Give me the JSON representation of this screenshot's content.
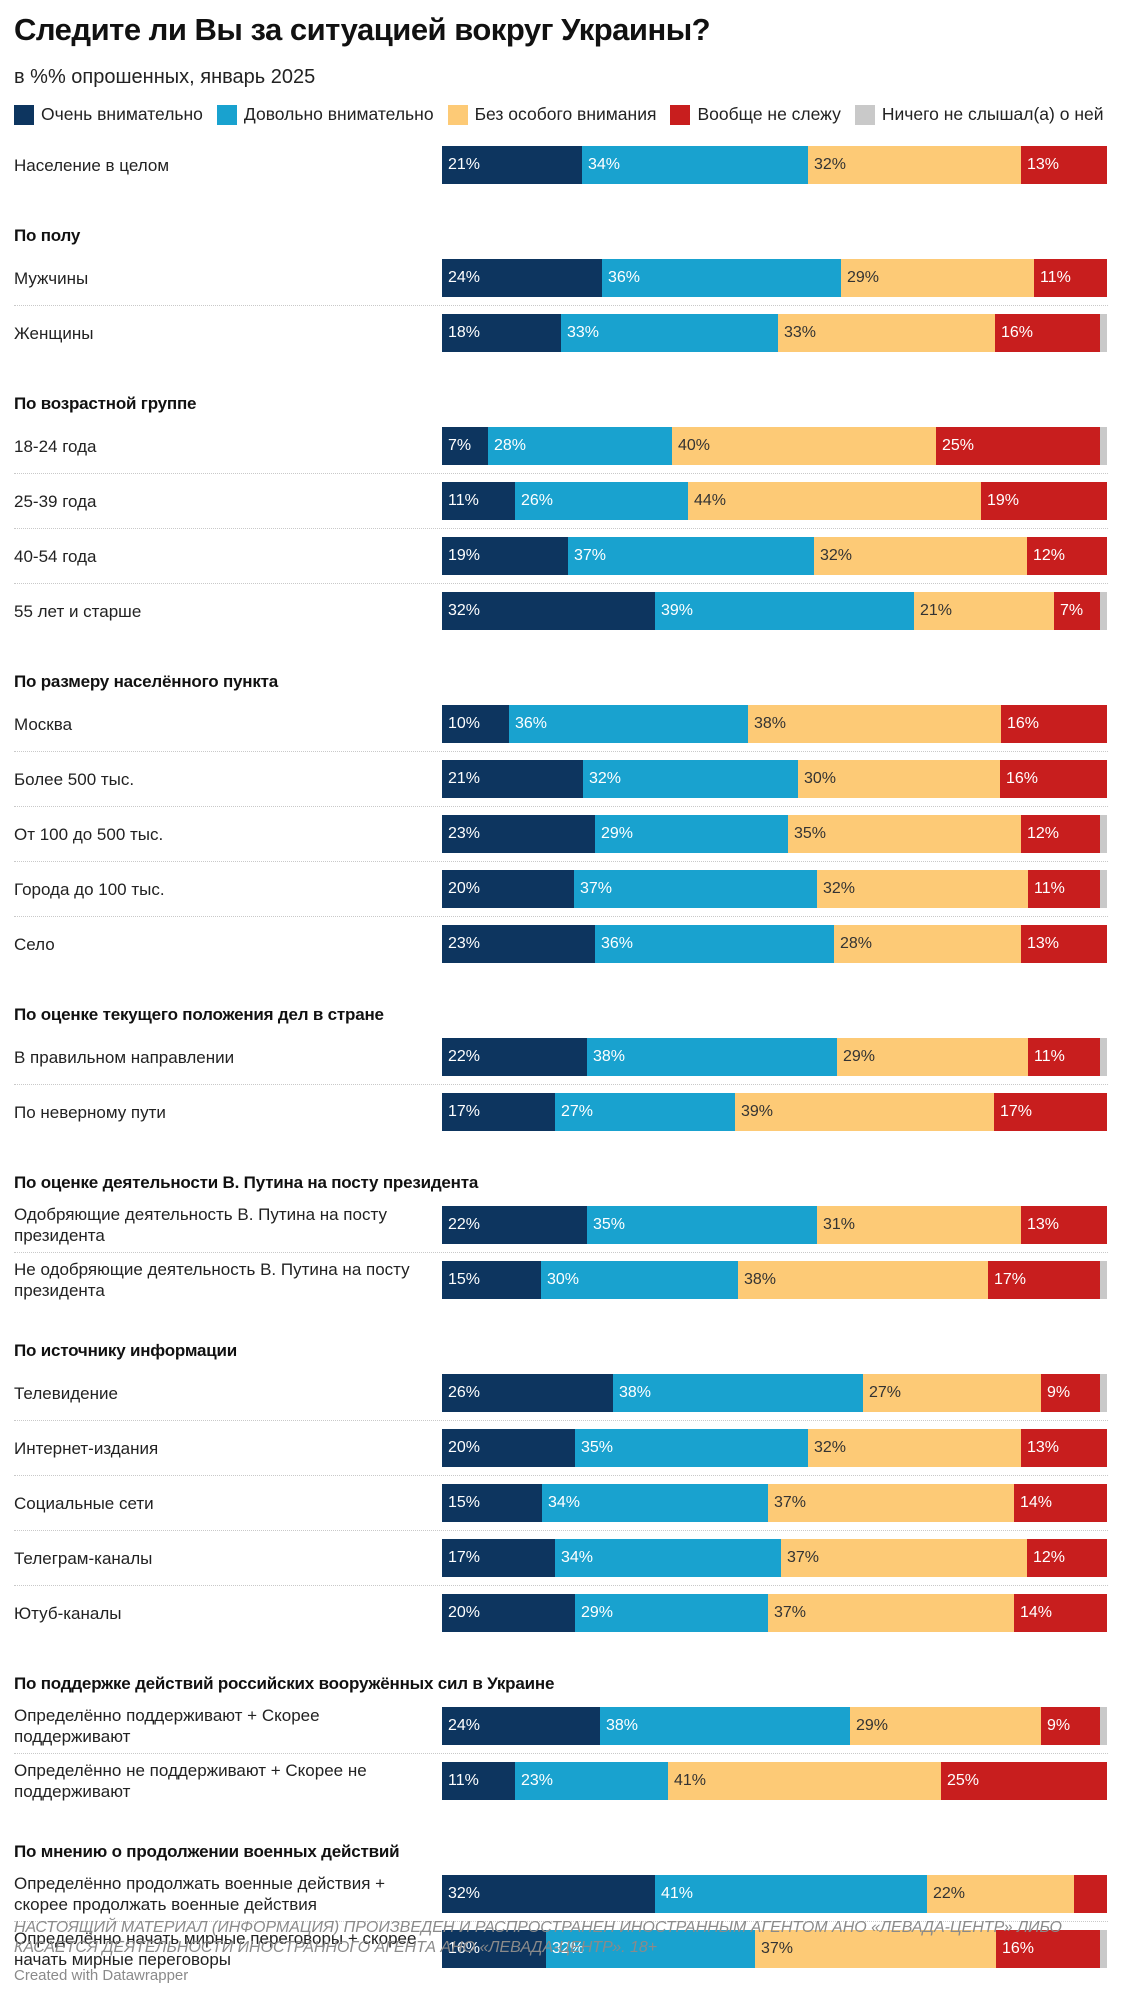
{
  "title": "Следите ли Вы за ситуацией вокруг Украины?",
  "subtitle": "в %% опрошенных, январь 2025",
  "legend": [
    {
      "key": "very",
      "label": "Очень внимательно",
      "color": "#0d355f"
    },
    {
      "key": "fairly",
      "label": "Довольно внимательно",
      "color": "#19a2cf"
    },
    {
      "key": "little",
      "label": "Без особого внимания",
      "color": "#fdca76"
    },
    {
      "key": "none",
      "label": "Вообще не слежу",
      "color": "#c81e1e"
    },
    {
      "key": "never",
      "label": "Ничего не слышал(а) о ней",
      "color": "#c9c9c9"
    }
  ],
  "chart_data": {
    "type": "bar",
    "orientation": "horizontal",
    "stacked": true,
    "normalized_to": 100,
    "unit": "%",
    "series_names": [
      "Очень внимательно",
      "Довольно внимательно",
      "Без особого внимания",
      "Вообще не слежу",
      "Ничего не слышал(а) о ней"
    ],
    "groups": [
      {
        "title": "",
        "rows": [
          {
            "label": "Население в целом",
            "values": [
              21,
              34,
              32,
              13,
              0
            ]
          }
        ]
      },
      {
        "title": "По полу",
        "rows": [
          {
            "label": "Мужчины",
            "values": [
              24,
              36,
              29,
              11,
              0
            ]
          },
          {
            "label": "Женщины",
            "values": [
              18,
              33,
              33,
              16,
              1
            ]
          }
        ]
      },
      {
        "title": "По возрастной группе",
        "rows": [
          {
            "label": "18-24 года",
            "values": [
              7,
              28,
              40,
              25,
              1
            ]
          },
          {
            "label": "25-39 года",
            "values": [
              11,
              26,
              44,
              19,
              0
            ]
          },
          {
            "label": "40-54 года",
            "values": [
              19,
              37,
              32,
              12,
              0
            ]
          },
          {
            "label": "55 лет и старше",
            "values": [
              32,
              39,
              21,
              7,
              1
            ]
          }
        ]
      },
      {
        "title": "По размеру населённого пункта",
        "rows": [
          {
            "label": "Москва",
            "values": [
              10,
              36,
              38,
              16,
              0
            ]
          },
          {
            "label": "Более 500 тыс.",
            "values": [
              21,
              32,
              30,
              16,
              0
            ]
          },
          {
            "label": "От 100 до 500 тыс.",
            "values": [
              23,
              29,
              35,
              12,
              1
            ]
          },
          {
            "label": "Города до 100 тыс.",
            "values": [
              20,
              37,
              32,
              11,
              1
            ]
          },
          {
            "label": "Село",
            "values": [
              23,
              36,
              28,
              13,
              0
            ]
          }
        ]
      },
      {
        "title": "По оценке текущего положения дел в стране",
        "rows": [
          {
            "label": "В правильном направлении",
            "values": [
              22,
              38,
              29,
              11,
              1
            ]
          },
          {
            "label": "По неверному пути",
            "values": [
              17,
              27,
              39,
              17,
              0
            ]
          }
        ]
      },
      {
        "title": "По оценке деятельности В. Путина на посту президента",
        "rows": [
          {
            "label": "Одобряющие деятельность В. Путина на посту президента",
            "values": [
              22,
              35,
              31,
              13,
              0
            ]
          },
          {
            "label": "Не одобряющие деятельность В. Путина на посту президента",
            "values": [
              15,
              30,
              38,
              17,
              1
            ]
          }
        ]
      },
      {
        "title": "По источнику информации",
        "rows": [
          {
            "label": "Телевидение",
            "values": [
              26,
              38,
              27,
              9,
              1
            ]
          },
          {
            "label": "Интернет-издания",
            "values": [
              20,
              35,
              32,
              13,
              0
            ]
          },
          {
            "label": "Социальные сети",
            "values": [
              15,
              34,
              37,
              14,
              0
            ]
          },
          {
            "label": "Телеграм-каналы",
            "values": [
              17,
              34,
              37,
              12,
              0
            ]
          },
          {
            "label": "Ютуб-каналы",
            "values": [
              20,
              29,
              37,
              14,
              0
            ]
          }
        ]
      },
      {
        "title": "По поддержке действий российских вооружённых сил в Украине",
        "rows": [
          {
            "label": "Определённо поддерживают + Скорее поддерживают",
            "values": [
              24,
              38,
              29,
              9,
              1
            ]
          },
          {
            "label": "Определённо не поддерживают + Скорее не поддерживают",
            "values": [
              11,
              23,
              41,
              25,
              0
            ]
          }
        ]
      },
      {
        "title": "По мнению о продолжении военных действий",
        "rows": [
          {
            "label": "Определённо продолжать военные действия + скорее продолжать военные действия",
            "values": [
              32,
              41,
              22,
              5,
              0
            ],
            "hide_labels": [
              3
            ]
          },
          {
            "label": "Определённо начать мирные переговоры + скорее начать мирные переговоры",
            "values": [
              16,
              32,
              37,
              16,
              1
            ]
          }
        ]
      }
    ]
  },
  "footer": {
    "note": "НАСТОЯЩИЙ МАТЕРИАЛ (ИНФОРМАЦИЯ) ПРОИЗВЕДЕН И РАСПРОСТРАНЕН ИНОСТРАННЫМ АГЕНТОМ АНО «ЛЕВАДА-ЦЕНТР» ЛИБО КАСАЕТСЯ ДЕЯТЕЛЬНОСТИ ИНОСТРАННОГО АГЕНТА АНО «ЛЕВАДА-ЦЕНТР». 18+",
    "credit": "Created with Datawrapper"
  }
}
